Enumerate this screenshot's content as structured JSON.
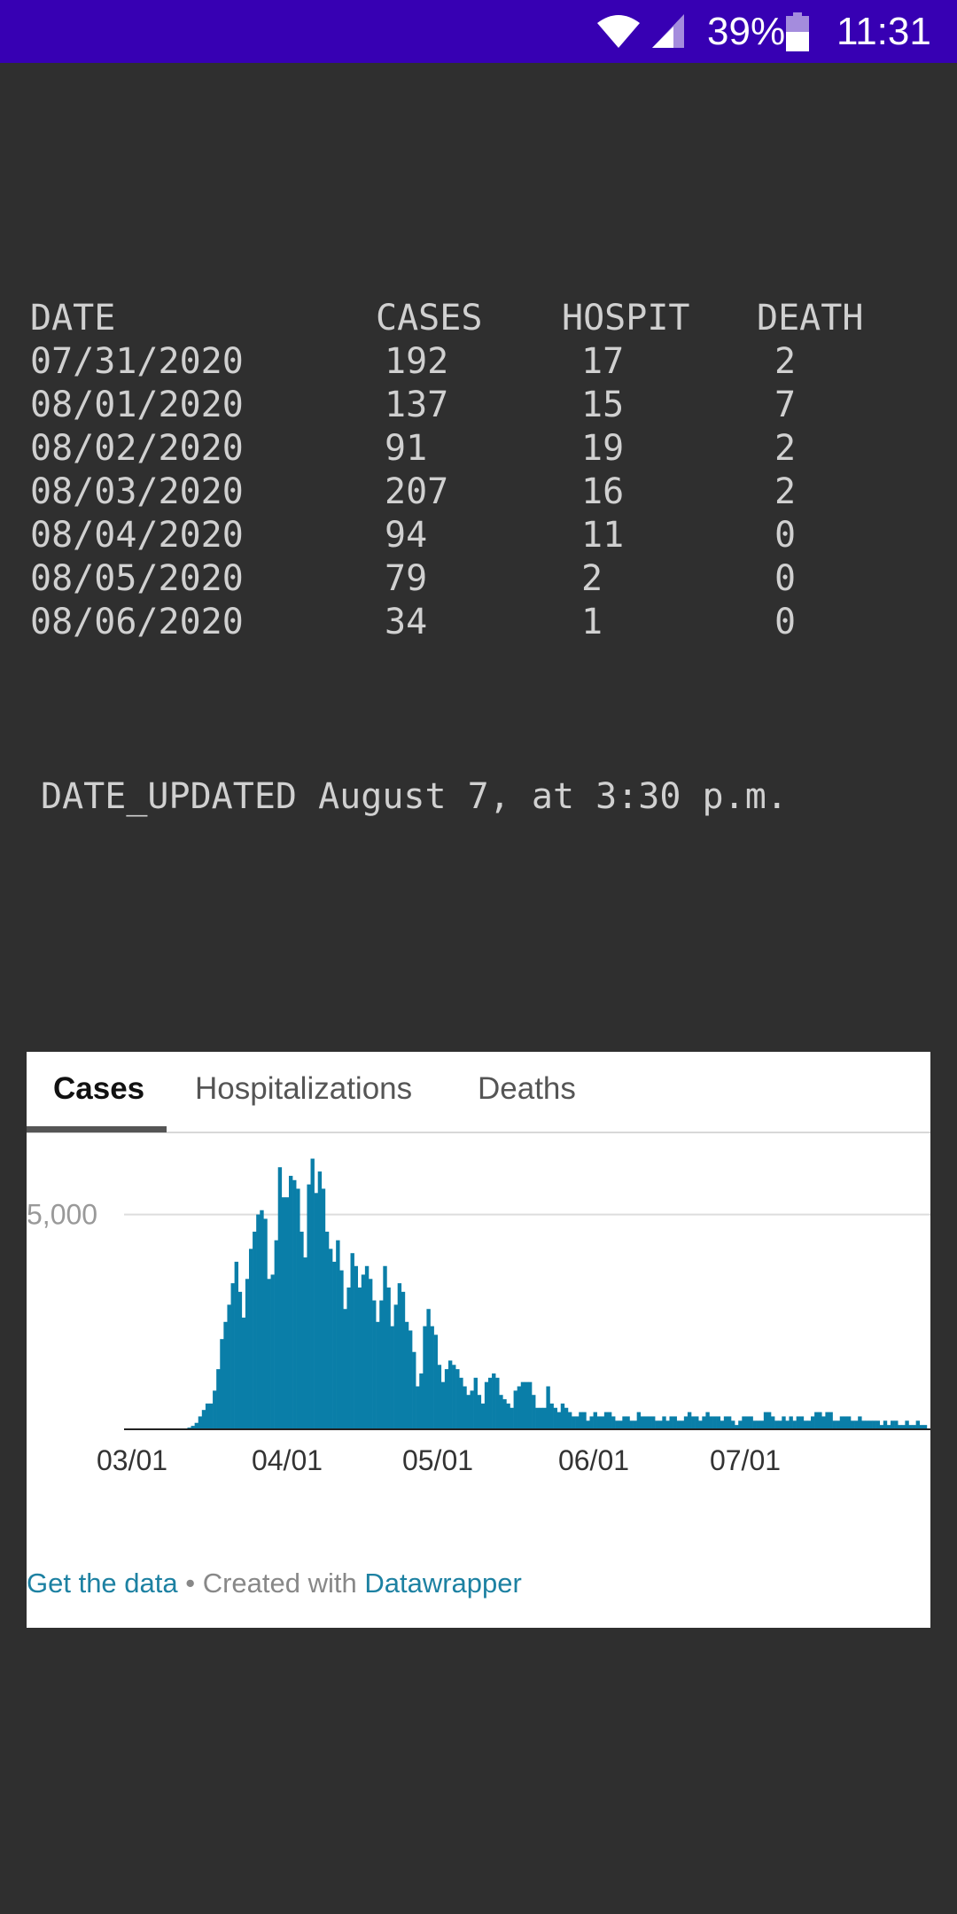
{
  "status_bar": {
    "battery_percent": "39%",
    "time": "11:31",
    "icons": [
      "wifi-icon",
      "cell-signal-icon",
      "battery-icon"
    ]
  },
  "table": {
    "headers": [
      "DATE",
      "CASES",
      "HOSPIT",
      "DEATH"
    ],
    "rows": [
      [
        "07/31/2020",
        "192",
        "17",
        "2"
      ],
      [
        "08/01/2020",
        "137",
        "15",
        "7"
      ],
      [
        "08/02/2020",
        "91",
        "19",
        "2"
      ],
      [
        "08/03/2020",
        "207",
        "16",
        "2"
      ],
      [
        "08/04/2020",
        "94",
        "11",
        "0"
      ],
      [
        "08/05/2020",
        "79",
        "2",
        "0"
      ],
      [
        "08/06/2020",
        "34",
        "1",
        "0"
      ]
    ]
  },
  "date_updated": "DATE_UPDATED August 7, at 3:30 p.m.",
  "widget": {
    "tabs": [
      {
        "label": "Cases",
        "active": true
      },
      {
        "label": "Hospitalizations",
        "active": false
      },
      {
        "label": "Deaths",
        "active": false
      }
    ],
    "footer": {
      "get_data": "Get the data",
      "separator": " • Created with ",
      "datawrapper": "Datawrapper"
    }
  },
  "chart_data": {
    "type": "bar",
    "title": "",
    "xlabel": "",
    "ylabel": "",
    "y_ticks": [
      {
        "value": 5000,
        "label": "5,000"
      }
    ],
    "x_ticks": [
      "03/01",
      "04/01",
      "05/01",
      "06/01",
      "07/01"
    ],
    "ylim": [
      0,
      6600
    ],
    "bar_color": "#0a7ea8",
    "gridlines": true,
    "values": [
      0,
      0,
      0,
      0,
      0,
      0,
      0,
      0,
      0,
      0,
      0,
      0,
      0,
      0,
      0,
      20,
      40,
      80,
      150,
      300,
      450,
      600,
      600,
      900,
      1400,
      2100,
      2500,
      2900,
      3400,
      3900,
      3200,
      2600,
      3500,
      4200,
      4600,
      5000,
      5100,
      4900,
      3500,
      3600,
      4400,
      6100,
      5400,
      5400,
      5900,
      5800,
      5600,
      4600,
      4000,
      5700,
      6300,
      5500,
      6000,
      5600,
      4600,
      4200,
      3900,
      4400,
      3700,
      2800,
      3300,
      4100,
      3800,
      3300,
      3600,
      3800,
      3500,
      3000,
      2500,
      3000,
      3800,
      3300,
      2400,
      2900,
      3400,
      3200,
      2500,
      2300,
      1800,
      1000,
      1300,
      2400,
      2800,
      2400,
      2200,
      1500,
      1100,
      1400,
      1600,
      1500,
      1400,
      1200,
      1000,
      800,
      900,
      1200,
      800,
      600,
      1100,
      1200,
      1300,
      1200,
      800,
      700,
      600,
      500,
      900,
      1000,
      1100,
      1100,
      1100,
      800,
      500,
      500,
      500,
      1000,
      600,
      500,
      400,
      600,
      500,
      400,
      300,
      300,
      400,
      400,
      200,
      300,
      400,
      300,
      300,
      400,
      400,
      300,
      200,
      200,
      300,
      300,
      200,
      200,
      400,
      300,
      300,
      300,
      300,
      200,
      200,
      300,
      200,
      300,
      300,
      200,
      200,
      300,
      400,
      300,
      300,
      200,
      300,
      400,
      300,
      300,
      300,
      200,
      300,
      300,
      200,
      100,
      200,
      300,
      300,
      300,
      200,
      200,
      200,
      400,
      400,
      300,
      200,
      200,
      300,
      200,
      300,
      200,
      300,
      300,
      200,
      200,
      300,
      400,
      400,
      300,
      400,
      400,
      200,
      200,
      300,
      300,
      300,
      200,
      200,
      300,
      200,
      200,
      200,
      200,
      200,
      100,
      200,
      100,
      200,
      200,
      100,
      100,
      200,
      100,
      100,
      200,
      100,
      100,
      0
    ]
  }
}
